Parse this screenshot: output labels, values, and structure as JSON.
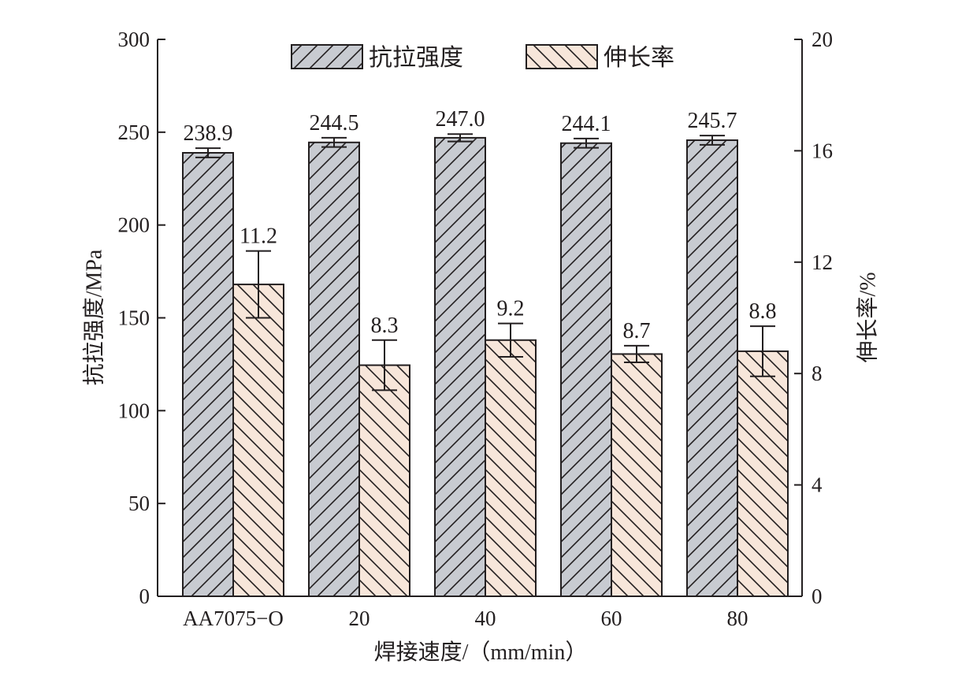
{
  "chart_data": {
    "type": "bar",
    "categories": [
      "AA7075−O",
      "20",
      "40",
      "60",
      "80"
    ],
    "series": [
      {
        "name": "抗拉强度",
        "axis": "left",
        "values": [
          238.9,
          244.5,
          247.0,
          244.1,
          245.7
        ],
        "errors": [
          2.5,
          2.5,
          2.0,
          2.5,
          2.5
        ],
        "labels": [
          "238.9",
          "244.5",
          "247.0",
          "244.1",
          "245.7"
        ],
        "fill": "#c8cbd1",
        "pattern": "forward-diagonal"
      },
      {
        "name": "伸长率",
        "axis": "right",
        "values": [
          11.2,
          8.3,
          9.2,
          8.7,
          8.8
        ],
        "errors": [
          1.2,
          0.9,
          0.6,
          0.3,
          0.9
        ],
        "labels": [
          "11.2",
          "8.3",
          "9.2",
          "8.7",
          "8.8"
        ],
        "fill": "#f7e6da",
        "pattern": "back-diagonal"
      }
    ],
    "xlabel": "焊接速度/（mm/min）",
    "ylabel_left": "抗拉强度/MPa",
    "ylabel_right": "伸长率/%",
    "ylim_left": [
      0,
      300
    ],
    "ylim_right": [
      0,
      20
    ],
    "yticks_left": [
      0,
      50,
      100,
      150,
      200,
      250,
      300
    ],
    "yticks_right": [
      0,
      4,
      8,
      12,
      16,
      20
    ],
    "legend_position": "top-center",
    "grid": false
  }
}
